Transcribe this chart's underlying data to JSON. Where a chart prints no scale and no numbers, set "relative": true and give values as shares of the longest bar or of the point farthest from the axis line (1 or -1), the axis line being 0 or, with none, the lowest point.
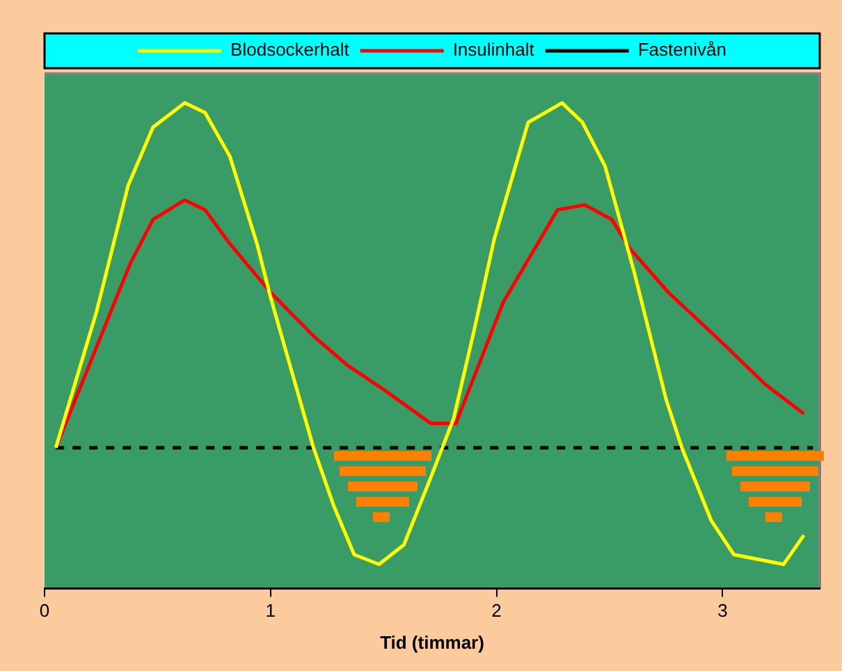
{
  "chart_data": {
    "type": "line",
    "xlabel": "Tid (timmar)",
    "relative": true,
    "xlim": [
      0,
      3.43
    ],
    "xticks": [
      0,
      1,
      2,
      3
    ],
    "legend": "top",
    "grid": false,
    "marker": "none",
    "series": [
      {
        "name": "Blodsockerhalt",
        "color": "#ffff00",
        "x": [
          0.05,
          0.23,
          0.37,
          0.48,
          0.62,
          0.71,
          0.82,
          0.94,
          1.0,
          1.19,
          1.28,
          1.37,
          1.48,
          1.59,
          1.71,
          1.81,
          1.9,
          1.99,
          2.14,
          2.29,
          2.38,
          2.48,
          2.61,
          2.75,
          2.82,
          2.95,
          3.05,
          3.16,
          3.27,
          3.36
        ],
        "values": [
          0.29,
          0.57,
          0.83,
          0.95,
          1.0,
          0.98,
          0.89,
          0.71,
          0.6,
          0.29,
          0.17,
          0.07,
          0.05,
          0.09,
          0.23,
          0.35,
          0.53,
          0.72,
          0.96,
          1.0,
          0.96,
          0.87,
          0.65,
          0.39,
          0.29,
          0.14,
          0.07,
          0.06,
          0.05,
          0.11
        ]
      },
      {
        "name": "Insulinhalt",
        "color": "#ff0000",
        "x": [
          0.05,
          0.38,
          0.48,
          0.62,
          0.71,
          0.82,
          1.0,
          1.19,
          1.34,
          1.5,
          1.71,
          1.82,
          2.03,
          2.27,
          2.39,
          2.51,
          2.59,
          2.76,
          2.99,
          3.19,
          3.36
        ],
        "values": [
          0.29,
          0.67,
          0.76,
          0.8,
          0.78,
          0.71,
          0.61,
          0.52,
          0.46,
          0.41,
          0.34,
          0.34,
          0.59,
          0.78,
          0.79,
          0.76,
          0.7,
          0.61,
          0.51,
          0.42,
          0.36
        ]
      },
      {
        "name": "Fastenivån",
        "color": "#000000",
        "line_style": "dashed",
        "x": [
          0.05,
          3.4
        ],
        "values": [
          0.29,
          0.29
        ]
      }
    ]
  }
}
